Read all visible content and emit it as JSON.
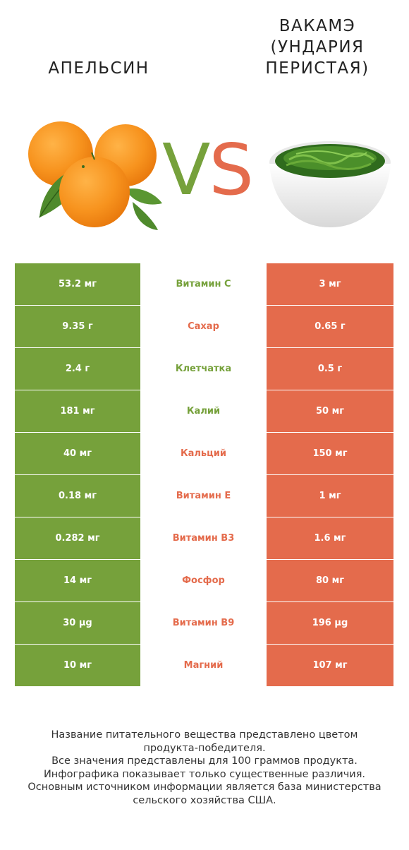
{
  "left_product": {
    "name": "АПЕЛЬСИН",
    "color": "#76a13b"
  },
  "right_product": {
    "name_lines": [
      "ВАКАМЭ",
      "(УНДАРИЯ",
      "ПЕРИСТАЯ)"
    ],
    "color": "#e46b4c"
  },
  "vs": {
    "v": "V",
    "s": "S"
  },
  "rows": [
    {
      "left": "53.2 мг",
      "nutrient": "Витамин C",
      "right": "3 мг",
      "winner": "left"
    },
    {
      "left": "9.35 г",
      "nutrient": "Сахар",
      "right": "0.65 г",
      "winner": "right"
    },
    {
      "left": "2.4 г",
      "nutrient": "Клетчатка",
      "right": "0.5 г",
      "winner": "left"
    },
    {
      "left": "181 мг",
      "nutrient": "Калий",
      "right": "50 мг",
      "winner": "left"
    },
    {
      "left": "40 мг",
      "nutrient": "Кальций",
      "right": "150 мг",
      "winner": "right"
    },
    {
      "left": "0.18 мг",
      "nutrient": "Витамин E",
      "right": "1 мг",
      "winner": "right"
    },
    {
      "left": "0.282 мг",
      "nutrient": "Витамин B3",
      "right": "1.6 мг",
      "winner": "right"
    },
    {
      "left": "14 мг",
      "nutrient": "Фосфор",
      "right": "80 мг",
      "winner": "right"
    },
    {
      "left": "30 µg",
      "nutrient": "Витамин B9",
      "right": "196 µg",
      "winner": "right"
    },
    {
      "left": "10 мг",
      "nutrient": "Магний",
      "right": "107 мг",
      "winner": "right"
    }
  ],
  "footer": [
    "Название питательного вещества представлено цветом",
    "продукта-победителя.",
    "Все значения представлены для 100 граммов продукта.",
    "Инфографика показывает только существенные различия.",
    "Основным источником информации является база министерства",
    "сельского хозяйства США."
  ]
}
